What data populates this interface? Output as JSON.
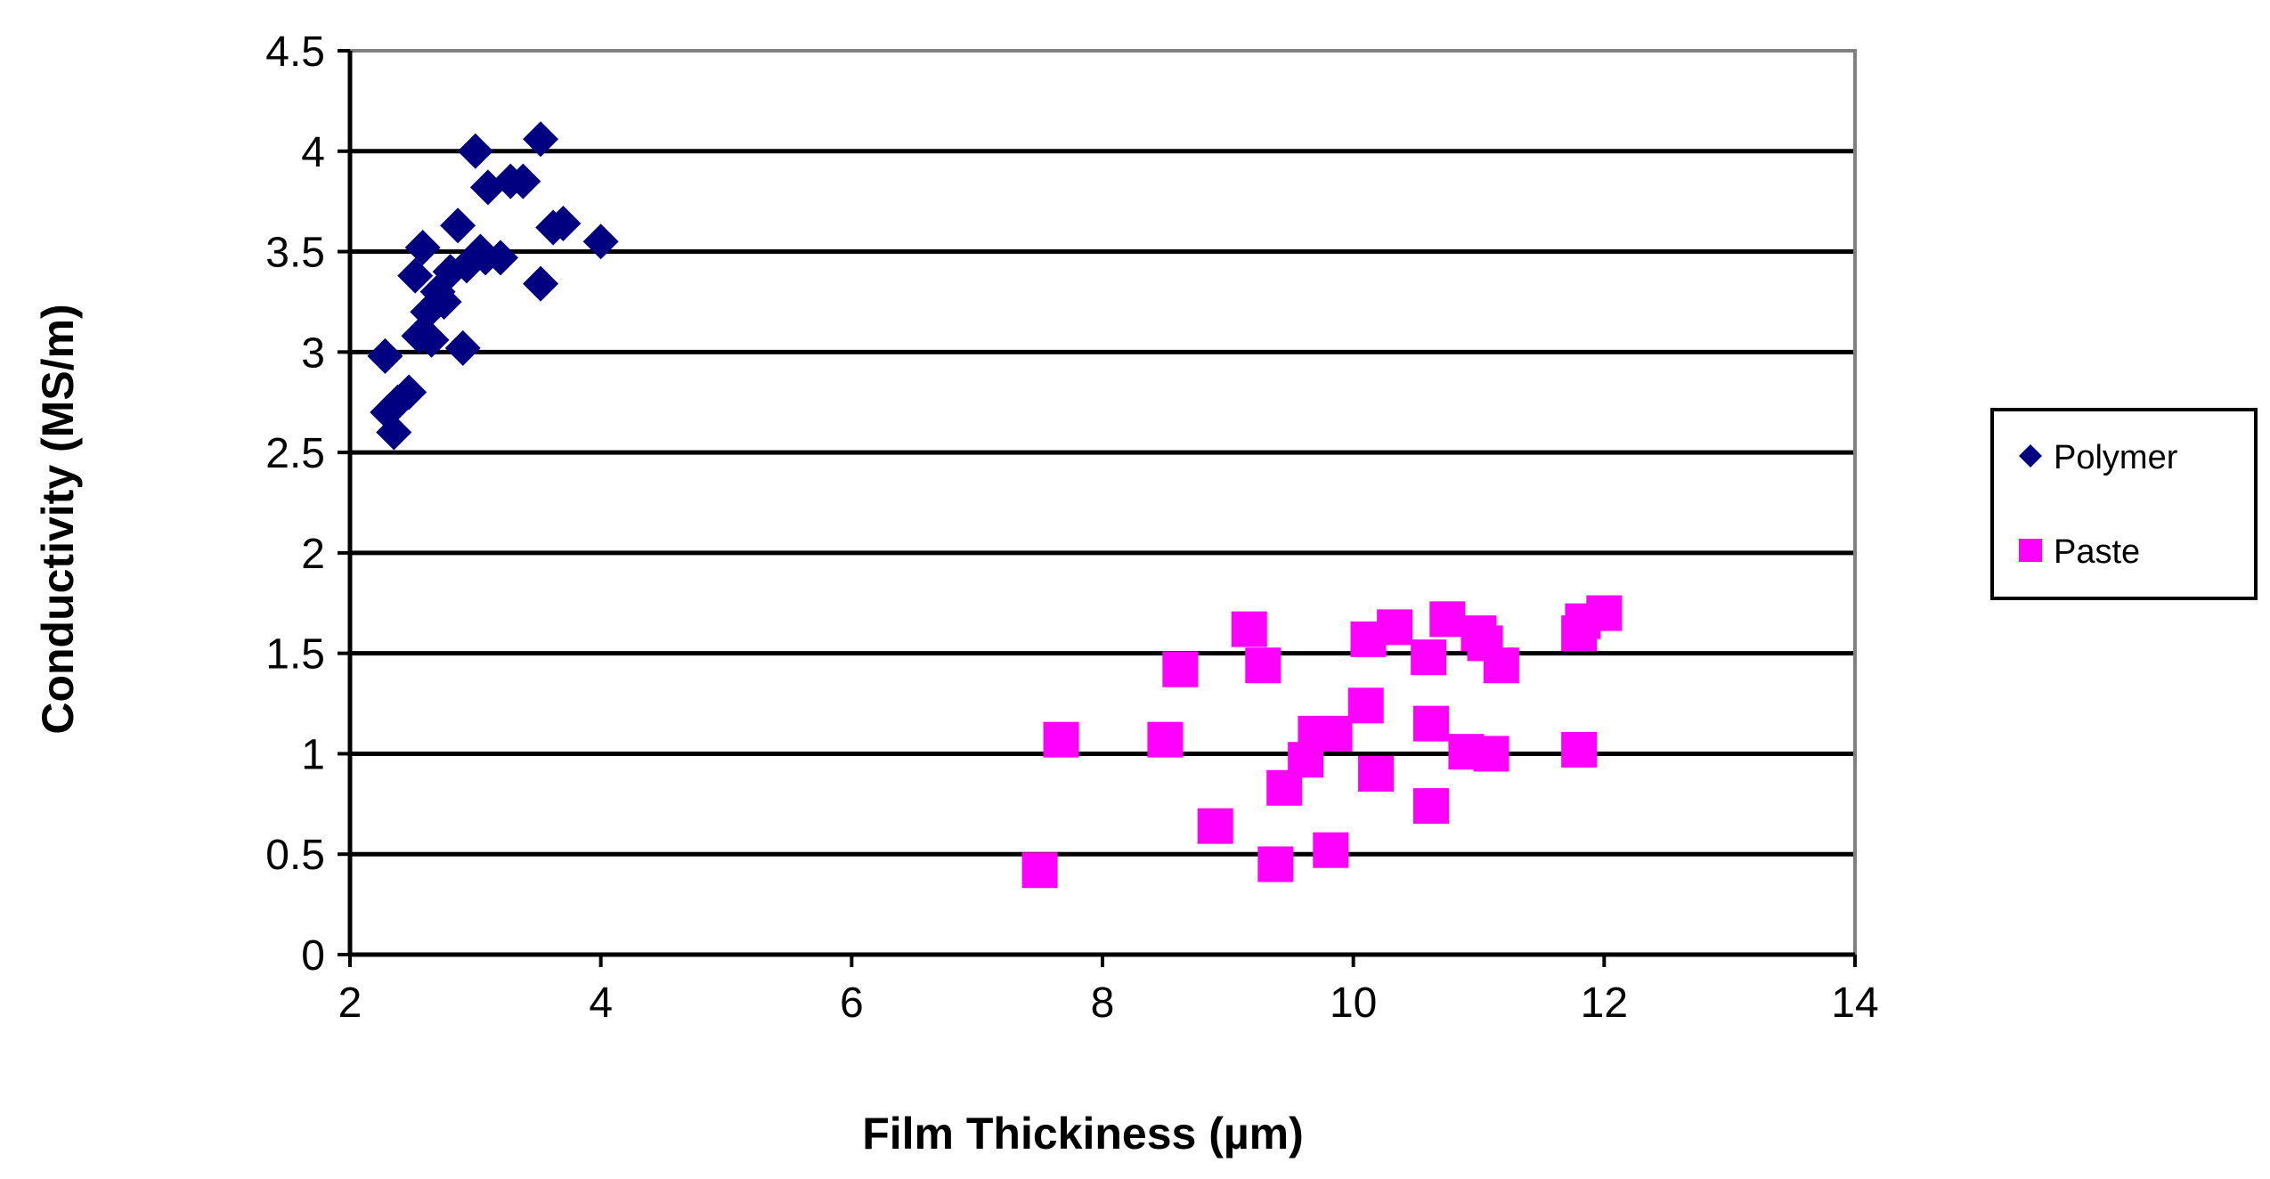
{
  "chart_data": {
    "type": "scatter",
    "xlabel": "Film Thickiness (µm)",
    "ylabel": "Conductivity (MS/m)",
    "xlim": [
      2,
      14
    ],
    "ylim": [
      0,
      4.5
    ],
    "x_ticks": [
      "2",
      "4",
      "6",
      "8",
      "10",
      "12",
      "14"
    ],
    "y_ticks": [
      "0",
      "0.5",
      "1",
      "1.5",
      "2",
      "2.5",
      "3",
      "3.5",
      "4",
      "4.5"
    ],
    "grid": "horizontal",
    "legend_position": "right",
    "series": [
      {
        "name": "Polymer",
        "marker": "diamond",
        "color": "#000080",
        "points": [
          [
            2.28,
            2.98
          ],
          [
            2.3,
            2.7
          ],
          [
            2.35,
            2.6
          ],
          [
            2.38,
            2.75
          ],
          [
            2.47,
            2.8
          ],
          [
            2.52,
            3.38
          ],
          [
            2.55,
            3.08
          ],
          [
            2.58,
            3.52
          ],
          [
            2.62,
            3.2
          ],
          [
            2.65,
            3.06
          ],
          [
            2.7,
            3.3
          ],
          [
            2.75,
            3.25
          ],
          [
            2.8,
            3.4
          ],
          [
            2.86,
            3.63
          ],
          [
            2.9,
            3.02
          ],
          [
            2.93,
            3.43
          ],
          [
            3.0,
            4.0
          ],
          [
            3.04,
            3.5
          ],
          [
            3.08,
            3.47
          ],
          [
            3.1,
            3.82
          ],
          [
            3.2,
            3.47
          ],
          [
            3.28,
            3.85
          ],
          [
            3.38,
            3.85
          ],
          [
            3.52,
            3.34
          ],
          [
            3.52,
            4.06
          ],
          [
            3.62,
            3.62
          ],
          [
            3.7,
            3.64
          ],
          [
            4.0,
            3.55
          ]
        ]
      },
      {
        "name": "Paste",
        "marker": "square",
        "color": "#ff00ff",
        "points": [
          [
            7.5,
            0.42
          ],
          [
            7.67,
            1.07
          ],
          [
            8.5,
            1.07
          ],
          [
            8.62,
            1.42
          ],
          [
            8.9,
            0.64
          ],
          [
            9.17,
            1.62
          ],
          [
            9.28,
            1.44
          ],
          [
            9.38,
            0.45
          ],
          [
            9.45,
            0.83
          ],
          [
            9.62,
            0.97
          ],
          [
            9.7,
            1.1
          ],
          [
            9.82,
            0.52
          ],
          [
            9.85,
            1.1
          ],
          [
            10.1,
            1.24
          ],
          [
            10.12,
            1.57
          ],
          [
            10.18,
            0.9
          ],
          [
            10.33,
            1.63
          ],
          [
            10.6,
            1.48
          ],
          [
            10.62,
            0.74
          ],
          [
            10.62,
            1.15
          ],
          [
            10.75,
            1.67
          ],
          [
            10.9,
            1.01
          ],
          [
            11.0,
            1.6
          ],
          [
            11.05,
            1.55
          ],
          [
            11.1,
            1.0
          ],
          [
            11.18,
            1.44
          ],
          [
            11.8,
            1.02
          ],
          [
            11.8,
            1.6
          ],
          [
            11.83,
            1.66
          ],
          [
            12.0,
            1.7
          ]
        ]
      }
    ]
  }
}
